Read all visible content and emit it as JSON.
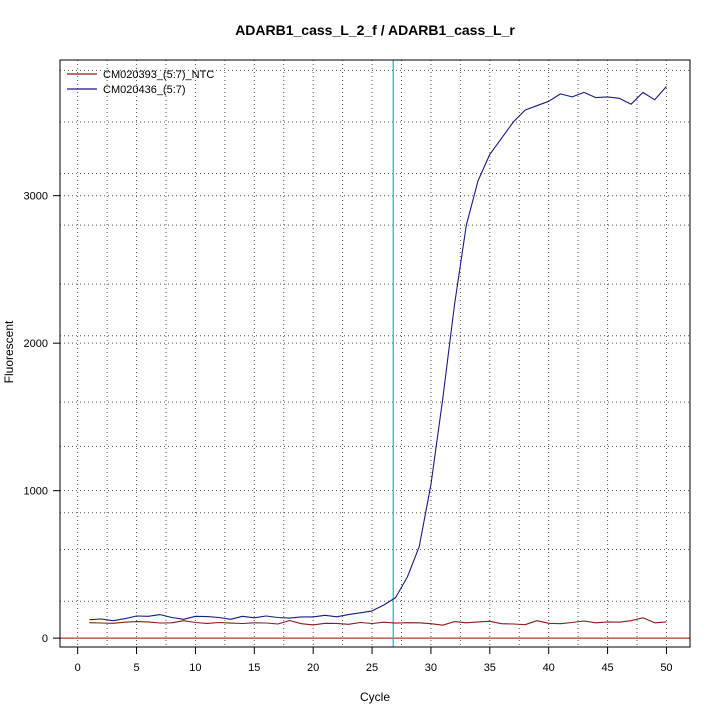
{
  "chart_data": {
    "type": "line",
    "title": "ADARB1_cass_L_2_f / ADARB1_cass_L_r",
    "xlabel": "Cycle",
    "ylabel": "Fluorescent",
    "xlim": [
      -1.5,
      52.0
    ],
    "ylim": [
      -60,
      3920
    ],
    "x_ticks": [
      0,
      5,
      10,
      15,
      20,
      25,
      30,
      35,
      40,
      45,
      50
    ],
    "y_ticks": [
      0,
      1000,
      2000,
      3000
    ],
    "x_grid": [
      2.5,
      7.5,
      12.5,
      17.5,
      22.5,
      27.5,
      32.5,
      37.5,
      42.5,
      47.5
    ],
    "y_grid": [
      250,
      600,
      850,
      1300,
      1600,
      2050,
      2400,
      2800,
      3150,
      3500,
      3850
    ],
    "threshold_cycle": 26.8,
    "baseline": 0,
    "grid": true,
    "legend_position": "top-left",
    "series": [
      {
        "name": "CM020393_(5:7)_NTC",
        "color": "#8b1a1a",
        "x": [
          1,
          2,
          3,
          4,
          5,
          6,
          7,
          8,
          9,
          10,
          11,
          12,
          13,
          14,
          15,
          16,
          17,
          18,
          19,
          20,
          21,
          22,
          23,
          24,
          25,
          26,
          27,
          28,
          29,
          30,
          31,
          32,
          33,
          34,
          35,
          36,
          37,
          38,
          39,
          40,
          41,
          42,
          43,
          44,
          45,
          46,
          47,
          48,
          49,
          50
        ],
        "y": [
          105,
          103,
          101,
          108,
          112,
          110,
          103,
          104,
          118,
          106,
          100,
          106,
          102,
          99,
          104,
          103,
          96,
          120,
          98,
          90,
          101,
          100,
          94,
          106,
          99,
          108,
          102,
          105,
          104,
          98,
          88,
          112,
          104,
          110,
          114,
          98,
          96,
          91,
          118,
          101,
          98,
          106,
          116,
          104,
          110,
          108,
          118,
          138,
          104,
          110
        ]
      },
      {
        "name": "CM020436_(5:7)",
        "color": "#1a1a80",
        "x": [
          1,
          2,
          3,
          4,
          5,
          6,
          7,
          8,
          9,
          10,
          11,
          12,
          13,
          14,
          15,
          16,
          17,
          18,
          19,
          20,
          21,
          22,
          23,
          24,
          25,
          26,
          27,
          28,
          29,
          30,
          31,
          32,
          33,
          34,
          35,
          36,
          37,
          38,
          39,
          40,
          41,
          42,
          43,
          44,
          45,
          46,
          47,
          48,
          49,
          50
        ],
        "y": [
          125,
          130,
          118,
          132,
          150,
          148,
          160,
          140,
          128,
          148,
          146,
          140,
          128,
          148,
          138,
          150,
          140,
          136,
          144,
          144,
          155,
          145,
          160,
          172,
          185,
          225,
          275,
          415,
          620,
          1040,
          1620,
          2260,
          2800,
          3100,
          3280,
          3390,
          3500,
          3580,
          3610,
          3640,
          3690,
          3670,
          3700,
          3665,
          3670,
          3660,
          3620,
          3700,
          3650,
          3740
        ]
      }
    ]
  }
}
